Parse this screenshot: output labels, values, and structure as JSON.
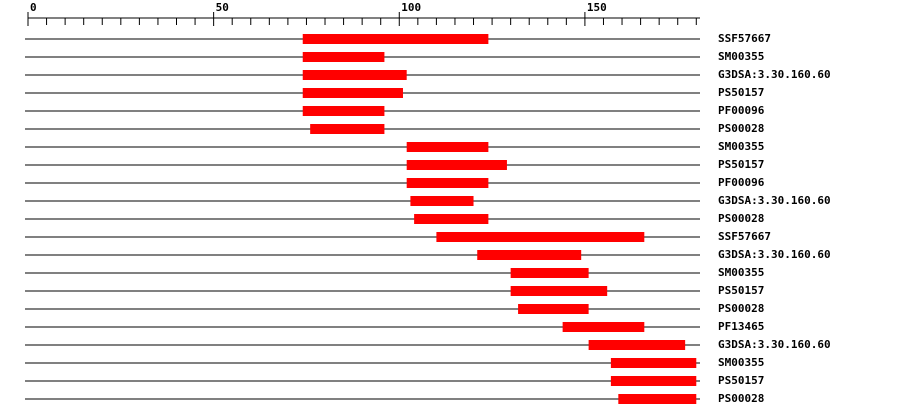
{
  "chart_data": {
    "type": "range-bar",
    "xlim": [
      0,
      181
    ],
    "xticks": [
      0,
      50,
      100,
      150
    ],
    "xminor_ticks": [
      5,
      10,
      15,
      20,
      25,
      30,
      35,
      40,
      45,
      55,
      60,
      65,
      70,
      75,
      80,
      85,
      90,
      95,
      105,
      110,
      115,
      120,
      125,
      130,
      135,
      140,
      145,
      155,
      160,
      165,
      170,
      175,
      180
    ],
    "color": "#ff0000",
    "rows": [
      {
        "name": "SSF57667",
        "start": 74,
        "end": 124
      },
      {
        "name": "SM00355",
        "start": 74,
        "end": 96
      },
      {
        "name": "G3DSA:3.30.160.60",
        "start": 74,
        "end": 102
      },
      {
        "name": "PS50157",
        "start": 74,
        "end": 101
      },
      {
        "name": "PF00096",
        "start": 74,
        "end": 96
      },
      {
        "name": "PS00028",
        "start": 76,
        "end": 96
      },
      {
        "name": "SM00355",
        "start": 102,
        "end": 124
      },
      {
        "name": "PS50157",
        "start": 102,
        "end": 129
      },
      {
        "name": "PF00096",
        "start": 102,
        "end": 124
      },
      {
        "name": "G3DSA:3.30.160.60",
        "start": 103,
        "end": 120
      },
      {
        "name": "PS00028",
        "start": 104,
        "end": 124
      },
      {
        "name": "SSF57667",
        "start": 110,
        "end": 166
      },
      {
        "name": "G3DSA:3.30.160.60",
        "start": 121,
        "end": 149
      },
      {
        "name": "SM00355",
        "start": 130,
        "end": 151
      },
      {
        "name": "PS50157",
        "start": 130,
        "end": 156
      },
      {
        "name": "PS00028",
        "start": 132,
        "end": 151
      },
      {
        "name": "PF13465",
        "start": 144,
        "end": 166
      },
      {
        "name": "G3DSA:3.30.160.60",
        "start": 151,
        "end": 177
      },
      {
        "name": "SM00355",
        "start": 157,
        "end": 180
      },
      {
        "name": "PS50157",
        "start": 157,
        "end": 180
      },
      {
        "name": "PS00028",
        "start": 159,
        "end": 180
      }
    ]
  }
}
